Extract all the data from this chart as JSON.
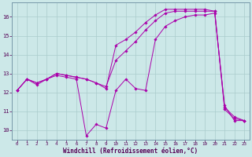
{
  "xlabel": "Windchill (Refroidissement éolien,°C)",
  "background_color": "#cce8e8",
  "grid_color": "#aacccc",
  "line_color": "#aa00aa",
  "xlim": [
    -0.5,
    23.5
  ],
  "ylim": [
    9.5,
    16.75
  ],
  "xticks": [
    0,
    1,
    2,
    3,
    4,
    5,
    6,
    7,
    8,
    9,
    10,
    11,
    12,
    13,
    14,
    15,
    16,
    17,
    18,
    19,
    20,
    21,
    22,
    23
  ],
  "yticks": [
    10,
    11,
    12,
    13,
    14,
    15,
    16
  ],
  "line1_x": [
    0,
    1,
    2,
    3,
    4,
    5,
    6,
    7,
    8,
    9,
    10,
    11,
    12,
    13,
    14,
    15,
    16,
    17,
    18,
    19,
    20,
    21,
    22,
    23
  ],
  "line1_y": [
    12.1,
    12.7,
    12.4,
    12.7,
    12.9,
    12.8,
    12.7,
    9.7,
    10.3,
    10.1,
    12.1,
    12.7,
    12.2,
    12.1,
    14.8,
    15.5,
    15.8,
    16.0,
    16.1,
    16.1,
    16.2,
    11.3,
    10.5,
    10.5
  ],
  "line2_x": [
    0,
    1,
    2,
    3,
    4,
    5,
    6,
    7,
    8,
    9,
    10,
    11,
    12,
    13,
    14,
    15,
    16,
    17,
    18,
    19,
    20,
    21,
    22,
    23
  ],
  "line2_y": [
    12.1,
    12.7,
    12.5,
    12.7,
    13.0,
    12.9,
    12.8,
    12.7,
    12.5,
    12.3,
    13.7,
    14.2,
    14.7,
    15.3,
    15.8,
    16.2,
    16.3,
    16.3,
    16.3,
    16.3,
    16.3,
    11.2,
    10.7,
    10.5
  ],
  "line3_x": [
    0,
    1,
    2,
    3,
    4,
    5,
    6,
    7,
    8,
    9,
    10,
    11,
    12,
    13,
    14,
    15,
    16,
    17,
    18,
    19,
    20,
    21,
    22,
    23
  ],
  "line3_y": [
    12.1,
    12.7,
    12.5,
    12.7,
    13.0,
    12.9,
    12.8,
    12.7,
    12.5,
    12.2,
    14.5,
    14.8,
    15.2,
    15.7,
    16.1,
    16.4,
    16.4,
    16.4,
    16.4,
    16.4,
    16.3,
    11.1,
    10.6,
    10.5
  ]
}
